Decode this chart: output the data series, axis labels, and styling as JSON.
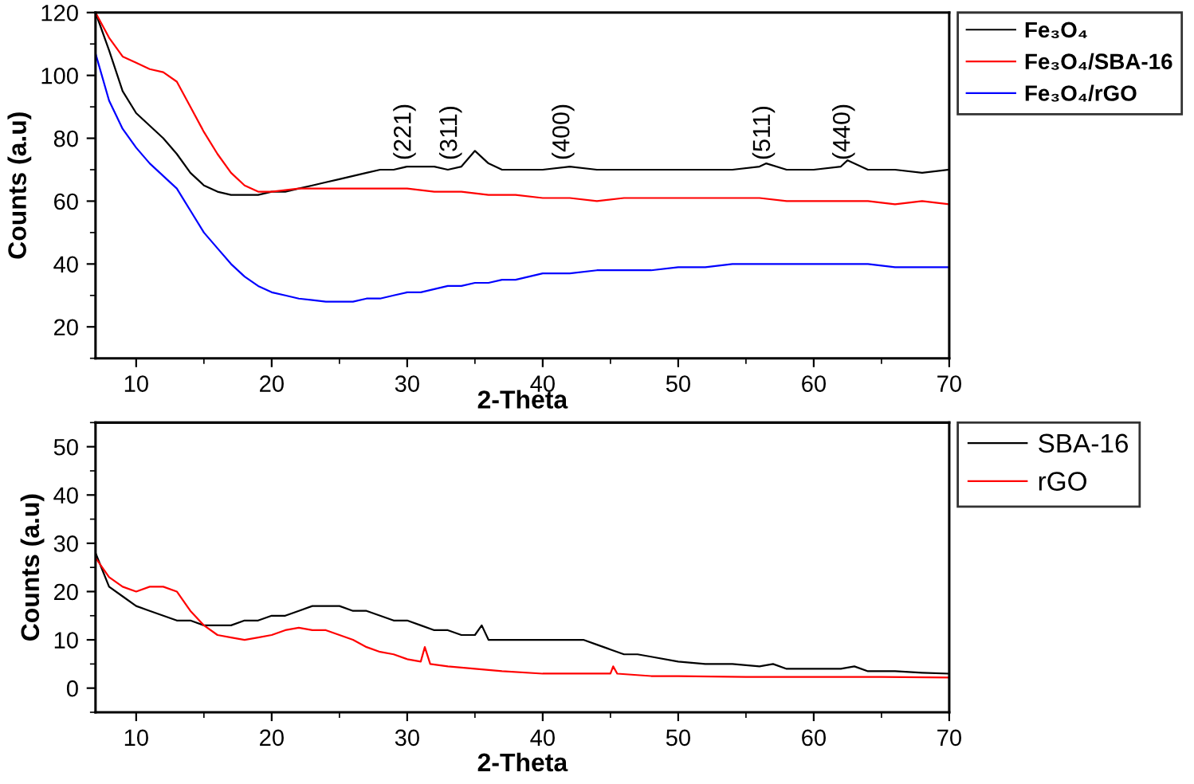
{
  "chart_data": [
    {
      "type": "line",
      "xlabel": "2-Theta",
      "ylabel": "Counts (a.u)",
      "xlim": [
        7,
        70
      ],
      "ylim": [
        10,
        120
      ],
      "xticks": [
        10,
        20,
        30,
        40,
        50,
        60,
        70
      ],
      "yticks": [
        20,
        40,
        60,
        80,
        100,
        120
      ],
      "grid": false,
      "legend": "top right",
      "marker": "none",
      "line_style": "solid",
      "annotations": [
        {
          "text": "(221)",
          "x": 29.8,
          "y": 73
        },
        {
          "text": "(311)",
          "x": 33.2,
          "y": 73
        },
        {
          "text": "(400)",
          "x": 41.5,
          "y": 73
        },
        {
          "text": "(511)",
          "x": 56.3,
          "y": 73
        },
        {
          "text": "(440)",
          "x": 62.2,
          "y": 73
        }
      ],
      "series": [
        {
          "name": "Fe₃O₄",
          "color": "#000000",
          "x": [
            7,
            8,
            9,
            10,
            11,
            12,
            13,
            14,
            15,
            16,
            17,
            18,
            19,
            20,
            21,
            22,
            23,
            24,
            25,
            26,
            27,
            28,
            29,
            30,
            31,
            32,
            33,
            34,
            35,
            36,
            37,
            38,
            40,
            42,
            44,
            46,
            48,
            50,
            52,
            54,
            56,
            56.5,
            58,
            60,
            62,
            62.5,
            64,
            66,
            68,
            70
          ],
          "values": [
            120,
            108,
            95,
            88,
            84,
            80,
            75,
            69,
            65,
            63,
            62,
            62,
            62,
            63,
            63,
            64,
            65,
            66,
            67,
            68,
            69,
            70,
            70,
            71,
            71,
            71,
            70,
            71,
            76,
            72,
            70,
            70,
            70,
            71,
            70,
            70,
            70,
            70,
            70,
            70,
            71,
            72,
            70,
            70,
            71,
            73,
            70,
            70,
            69,
            70
          ]
        },
        {
          "name": "Fe₃O₄/SBA-16",
          "color": "#ff0000",
          "x": [
            7,
            8,
            9,
            10,
            11,
            12,
            13,
            14,
            15,
            16,
            17,
            18,
            19,
            20,
            22,
            24,
            26,
            28,
            30,
            32,
            34,
            36,
            38,
            40,
            42,
            44,
            46,
            48,
            50,
            52,
            54,
            56,
            58,
            60,
            62,
            64,
            66,
            68,
            70
          ],
          "values": [
            120,
            112,
            106,
            104,
            102,
            101,
            98,
            90,
            82,
            75,
            69,
            65,
            63,
            63,
            64,
            64,
            64,
            64,
            64,
            63,
            63,
            62,
            62,
            61,
            61,
            60,
            61,
            61,
            61,
            61,
            61,
            61,
            60,
            60,
            60,
            60,
            59,
            60,
            59
          ]
        },
        {
          "name": "Fe₃O₄/rGO",
          "color": "#0000ff",
          "x": [
            7,
            8,
            9,
            10,
            11,
            12,
            13,
            14,
            15,
            16,
            17,
            18,
            19,
            20,
            21,
            22,
            23,
            24,
            25,
            26,
            27,
            28,
            29,
            30,
            31,
            32,
            33,
            34,
            35,
            36,
            37,
            38,
            39,
            40,
            42,
            44,
            46,
            48,
            50,
            52,
            54,
            56,
            58,
            60,
            62,
            64,
            66,
            68,
            70
          ],
          "values": [
            107,
            92,
            83,
            77,
            72,
            68,
            64,
            57,
            50,
            45,
            40,
            36,
            33,
            31,
            30,
            29,
            28.5,
            28,
            28,
            28,
            29,
            29,
            30,
            31,
            31,
            32,
            33,
            33,
            34,
            34,
            35,
            35,
            36,
            37,
            37,
            38,
            38,
            38,
            39,
            39,
            40,
            40,
            40,
            40,
            40,
            40,
            39,
            39,
            39
          ]
        }
      ]
    },
    {
      "type": "line",
      "xlabel": "2-Theta",
      "ylabel": "Counts (a.u)",
      "xlim": [
        7,
        70
      ],
      "ylim": [
        -5,
        55
      ],
      "xticks": [
        10,
        20,
        30,
        40,
        50,
        60,
        70
      ],
      "yticks": [
        0,
        10,
        20,
        30,
        40,
        50
      ],
      "grid": false,
      "legend": "top right",
      "marker": "none",
      "line_style": "solid",
      "series": [
        {
          "name": "SBA-16",
          "color": "#000000",
          "x": [
            7,
            8,
            9,
            10,
            11,
            12,
            13,
            14,
            15,
            16,
            17,
            18,
            19,
            20,
            21,
            22,
            23,
            24,
            25,
            26,
            27,
            28,
            29,
            30,
            31,
            32,
            33,
            34,
            35,
            35.5,
            36,
            38,
            40,
            42,
            43,
            44,
            45,
            46,
            47,
            48,
            50,
            52,
            54,
            56,
            57,
            58,
            60,
            62,
            63,
            64,
            66,
            68,
            70
          ],
          "values": [
            28,
            21,
            19,
            17,
            16,
            15,
            14,
            14,
            13,
            13,
            13,
            14,
            14,
            15,
            15,
            16,
            17,
            17,
            17,
            16,
            16,
            15,
            14,
            14,
            13,
            12,
            12,
            11,
            11,
            13,
            10,
            10,
            10,
            10,
            10,
            9,
            8,
            7,
            7,
            6.5,
            5.5,
            5,
            5,
            4.5,
            5,
            4,
            4,
            4,
            4.5,
            3.5,
            3.5,
            3.2,
            3
          ]
        },
        {
          "name": "rGO",
          "color": "#ff0000",
          "x": [
            7,
            8,
            9,
            10,
            11,
            12,
            13,
            14,
            15,
            16,
            17,
            18,
            19,
            20,
            21,
            22,
            23,
            24,
            25,
            26,
            27,
            28,
            29,
            30,
            31,
            31.3,
            31.7,
            33,
            35,
            37,
            40,
            43,
            45,
            45.2,
            45.5,
            48,
            50,
            55,
            60,
            65,
            70
          ],
          "values": [
            27,
            23,
            21,
            20,
            21,
            21,
            20,
            16,
            13,
            11,
            10.5,
            10,
            10.5,
            11,
            12,
            12.5,
            12,
            12,
            11,
            10,
            8.5,
            7.5,
            7,
            6,
            5.5,
            8.5,
            5,
            4.5,
            4,
            3.5,
            3,
            3,
            3,
            4.5,
            3,
            2.5,
            2.5,
            2.3,
            2.3,
            2.3,
            2.2
          ]
        }
      ]
    }
  ]
}
